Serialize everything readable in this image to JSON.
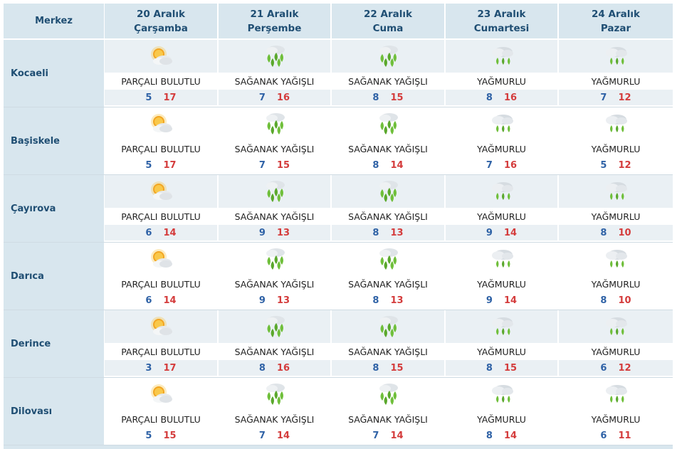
{
  "header": {
    "corner_label": "Merkez",
    "days": [
      {
        "date": "20 Aralık",
        "weekday": "Çarşamba"
      },
      {
        "date": "21 Aralık",
        "weekday": "Perşembe"
      },
      {
        "date": "22 Aralık",
        "weekday": "Cuma"
      },
      {
        "date": "23 Aralık",
        "weekday": "Cumartesi"
      },
      {
        "date": "24 Aralık",
        "weekday": "Pazar"
      }
    ]
  },
  "colors": {
    "header_bg": "#d8e6ee",
    "header_text": "#1f4e73",
    "min_temp": "#2f62a6",
    "max_temp": "#d43c3c",
    "rain_green": "#6fbf3a"
  },
  "rows": [
    {
      "city": "Kocaeli",
      "cells": [
        {
          "icon": "partly-cloudy-icon",
          "desc": "PARÇALI BULUTLU",
          "min": "5",
          "max": "17"
        },
        {
          "icon": "showers-icon",
          "desc": "SAĞANAK YAĞIŞLI",
          "min": "7",
          "max": "16"
        },
        {
          "icon": "showers-icon",
          "desc": "SAĞANAK YAĞIŞLI",
          "min": "8",
          "max": "15"
        },
        {
          "icon": "rain-icon",
          "desc": "YAĞMURLU",
          "min": "8",
          "max": "16"
        },
        {
          "icon": "rain-icon",
          "desc": "YAĞMURLU",
          "min": "7",
          "max": "12"
        }
      ]
    },
    {
      "city": "Başiskele",
      "cells": [
        {
          "icon": "partly-cloudy-icon",
          "desc": "PARÇALI BULUTLU",
          "min": "5",
          "max": "17"
        },
        {
          "icon": "showers-icon",
          "desc": "SAĞANAK YAĞIŞLI",
          "min": "7",
          "max": "15"
        },
        {
          "icon": "showers-icon",
          "desc": "SAĞANAK YAĞIŞLI",
          "min": "8",
          "max": "14"
        },
        {
          "icon": "rain-icon",
          "desc": "YAĞMURLU",
          "min": "7",
          "max": "16"
        },
        {
          "icon": "rain-icon",
          "desc": "YAĞMURLU",
          "min": "5",
          "max": "12"
        }
      ]
    },
    {
      "city": "Çayırova",
      "cells": [
        {
          "icon": "partly-cloudy-icon",
          "desc": "PARÇALI BULUTLU",
          "min": "6",
          "max": "14"
        },
        {
          "icon": "showers-icon",
          "desc": "SAĞANAK YAĞIŞLI",
          "min": "9",
          "max": "13"
        },
        {
          "icon": "showers-icon",
          "desc": "SAĞANAK YAĞIŞLI",
          "min": "8",
          "max": "13"
        },
        {
          "icon": "rain-icon",
          "desc": "YAĞMURLU",
          "min": "9",
          "max": "14"
        },
        {
          "icon": "rain-icon",
          "desc": "YAĞMURLU",
          "min": "8",
          "max": "10"
        }
      ]
    },
    {
      "city": "Darıca",
      "cells": [
        {
          "icon": "partly-cloudy-icon",
          "desc": "PARÇALI BULUTLU",
          "min": "6",
          "max": "14"
        },
        {
          "icon": "showers-icon",
          "desc": "SAĞANAK YAĞIŞLI",
          "min": "9",
          "max": "13"
        },
        {
          "icon": "showers-icon",
          "desc": "SAĞANAK YAĞIŞLI",
          "min": "8",
          "max": "13"
        },
        {
          "icon": "rain-icon",
          "desc": "YAĞMURLU",
          "min": "9",
          "max": "14"
        },
        {
          "icon": "rain-icon",
          "desc": "YAĞMURLU",
          "min": "8",
          "max": "10"
        }
      ]
    },
    {
      "city": "Derince",
      "cells": [
        {
          "icon": "partly-cloudy-icon",
          "desc": "PARÇALI BULUTLU",
          "min": "3",
          "max": "17"
        },
        {
          "icon": "showers-icon",
          "desc": "SAĞANAK YAĞIŞLI",
          "min": "8",
          "max": "16"
        },
        {
          "icon": "showers-icon",
          "desc": "SAĞANAK YAĞIŞLI",
          "min": "8",
          "max": "15"
        },
        {
          "icon": "rain-icon",
          "desc": "YAĞMURLU",
          "min": "8",
          "max": "15"
        },
        {
          "icon": "rain-icon",
          "desc": "YAĞMURLU",
          "min": "6",
          "max": "12"
        }
      ]
    },
    {
      "city": "Dilovası",
      "cells": [
        {
          "icon": "partly-cloudy-icon",
          "desc": "PARÇALI BULUTLU",
          "min": "5",
          "max": "15"
        },
        {
          "icon": "showers-icon",
          "desc": "SAĞANAK YAĞIŞLI",
          "min": "7",
          "max": "14"
        },
        {
          "icon": "showers-icon",
          "desc": "SAĞANAK YAĞIŞLI",
          "min": "7",
          "max": "14"
        },
        {
          "icon": "rain-icon",
          "desc": "YAĞMURLU",
          "min": "8",
          "max": "14"
        },
        {
          "icon": "rain-icon",
          "desc": "YAĞMURLU",
          "min": "6",
          "max": "11"
        }
      ]
    }
  ]
}
